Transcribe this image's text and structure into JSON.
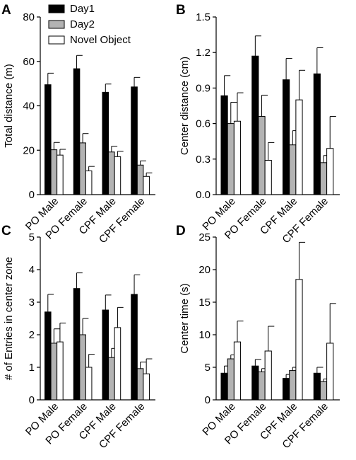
{
  "legend": [
    {
      "label": "Day1",
      "color": "#000000"
    },
    {
      "label": "Day2",
      "color": "#b3b3b3"
    },
    {
      "label": "Novel Object",
      "color": "#ffffff"
    }
  ],
  "chart_data": [
    {
      "type": "bar",
      "panel_label": "A",
      "ylabel": "Total distance (m)",
      "ylim": [
        0,
        80
      ],
      "yticks": [
        "0",
        "20",
        "40",
        "60",
        "80"
      ],
      "categories": [
        "PO Male",
        "PO Female",
        "CPF Male",
        "CPF Female"
      ],
      "series": [
        {
          "name": "Day1",
          "values": [
            49.5,
            56.7,
            46.1,
            48.5
          ],
          "errors": [
            5.2,
            6.0,
            3.7,
            4.3
          ]
        },
        {
          "name": "Day2",
          "values": [
            20.2,
            23.3,
            19.2,
            13.3
          ],
          "errors": [
            3.3,
            4.2,
            2.6,
            1.9
          ]
        },
        {
          "name": "Novel Object",
          "values": [
            17.8,
            10.7,
            17.1,
            8.2
          ],
          "errors": [
            2.6,
            2.0,
            2.4,
            1.6
          ]
        }
      ]
    },
    {
      "type": "bar",
      "panel_label": "B",
      "ylabel": "Center distance (cm)",
      "ylim": [
        0,
        1.5
      ],
      "yticks": [
        "0.0",
        "0.3",
        "0.6",
        "0.9",
        "1.2",
        "1.5"
      ],
      "categories": [
        "PO Male",
        "PO Female",
        "CPF Male",
        "CPF Female"
      ],
      "series": [
        {
          "name": "Day1",
          "values": [
            0.835,
            1.17,
            0.97,
            1.02
          ],
          "errors": [
            0.17,
            0.17,
            0.18,
            0.22
          ]
        },
        {
          "name": "Day2",
          "values": [
            0.6,
            0.66,
            0.42,
            0.27
          ],
          "errors": [
            0.18,
            0.18,
            0.12,
            0.06
          ]
        },
        {
          "name": "Novel Object",
          "values": [
            0.62,
            0.29,
            0.8,
            0.39
          ],
          "errors": [
            0.24,
            0.15,
            0.25,
            0.27
          ]
        }
      ]
    },
    {
      "type": "bar",
      "panel_label": "C",
      "ylabel": "# of Entries in center zone",
      "ylim": [
        0,
        5
      ],
      "yticks": [
        "0",
        "1",
        "2",
        "3",
        "4",
        "5"
      ],
      "categories": [
        "PO Male",
        "PO Female",
        "CPF Male",
        "CPF Female"
      ],
      "series": [
        {
          "name": "Day1",
          "values": [
            2.7,
            3.42,
            2.76,
            3.24
          ],
          "errors": [
            0.54,
            0.48,
            0.46,
            0.6
          ]
        },
        {
          "name": "Day2",
          "values": [
            1.74,
            2.0,
            1.3,
            0.96
          ],
          "errors": [
            0.44,
            0.5,
            0.28,
            0.2
          ]
        },
        {
          "name": "Novel Object",
          "values": [
            1.78,
            1.0,
            2.22,
            0.8
          ],
          "errors": [
            0.58,
            0.4,
            0.62,
            0.46
          ]
        }
      ]
    },
    {
      "type": "bar",
      "panel_label": "D",
      "ylabel": "Center time (s)",
      "ylim": [
        0,
        25
      ],
      "yticks": [
        "0",
        "5",
        "10",
        "15",
        "20",
        "25"
      ],
      "categories": [
        "PO Male",
        "PO Female",
        "CPF Male",
        "CPF Female"
      ],
      "series": [
        {
          "name": "Day1",
          "values": [
            4.1,
            5.2,
            3.3,
            4.1
          ],
          "errors": [
            1.1,
            1.0,
            0.6,
            0.9
          ]
        },
        {
          "name": "Day2",
          "values": [
            6.3,
            4.3,
            4.5,
            2.8
          ],
          "errors": [
            0.6,
            0.5,
            0.5,
            0.4
          ]
        },
        {
          "name": "Novel Object",
          "values": [
            8.9,
            7.5,
            18.5,
            8.7
          ],
          "errors": [
            3.2,
            3.8,
            5.7,
            6.1
          ]
        }
      ]
    }
  ]
}
